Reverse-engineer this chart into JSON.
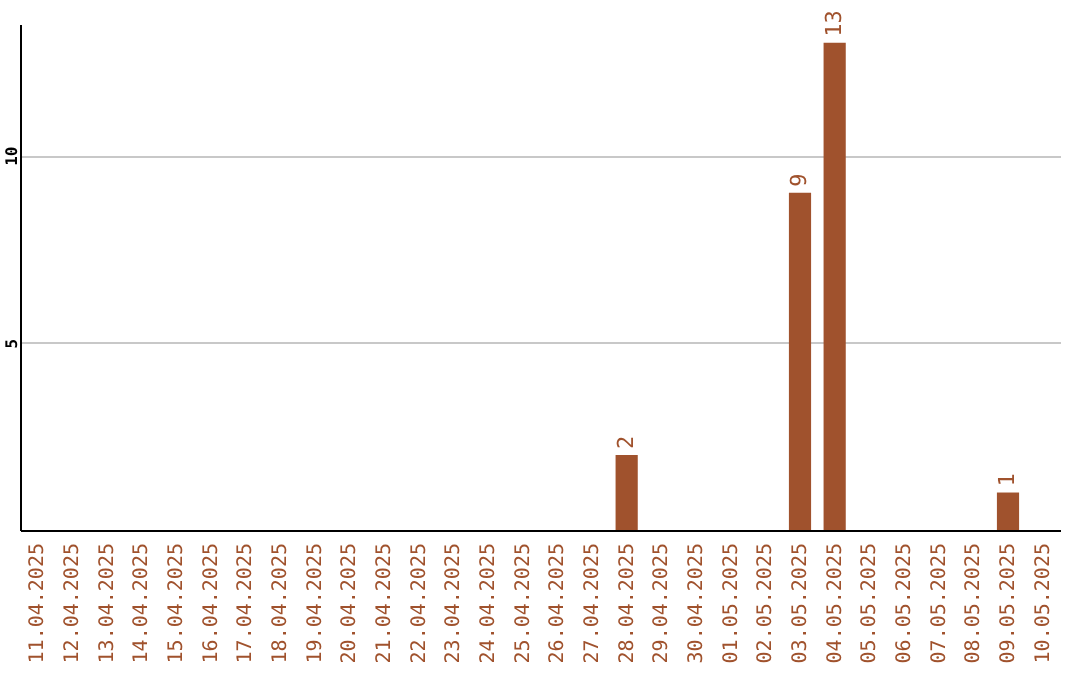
{
  "chart_data": {
    "type": "bar",
    "categories": [
      "11.04.2025",
      "12.04.2025",
      "13.04.2025",
      "14.04.2025",
      "15.04.2025",
      "16.04.2025",
      "17.04.2025",
      "18.04.2025",
      "19.04.2025",
      "20.04.2025",
      "21.04.2025",
      "22.04.2025",
      "23.04.2025",
      "24.04.2025",
      "25.04.2025",
      "26.04.2025",
      "27.04.2025",
      "28.04.2025",
      "29.04.2025",
      "30.04.2025",
      "01.05.2025",
      "02.05.2025",
      "03.05.2025",
      "04.05.2025",
      "05.05.2025",
      "06.05.2025",
      "07.05.2025",
      "08.05.2025",
      "09.05.2025",
      "10.05.2025"
    ],
    "values": [
      0,
      0,
      0,
      0,
      0,
      0,
      0,
      0,
      0,
      0,
      0,
      0,
      0,
      0,
      0,
      0,
      0,
      2,
      0,
      0,
      0,
      0,
      9,
      13,
      0,
      0,
      0,
      0,
      1,
      0
    ],
    "value_labels": [
      null,
      null,
      null,
      null,
      null,
      null,
      null,
      null,
      null,
      null,
      null,
      null,
      null,
      null,
      null,
      null,
      null,
      "2",
      null,
      null,
      null,
      null,
      "9",
      "13",
      null,
      null,
      null,
      null,
      "1",
      null
    ],
    "color": "#a0522d",
    "ylim": [
      0,
      13.5
    ],
    "yticks": [
      5,
      10
    ],
    "grid": "y"
  }
}
